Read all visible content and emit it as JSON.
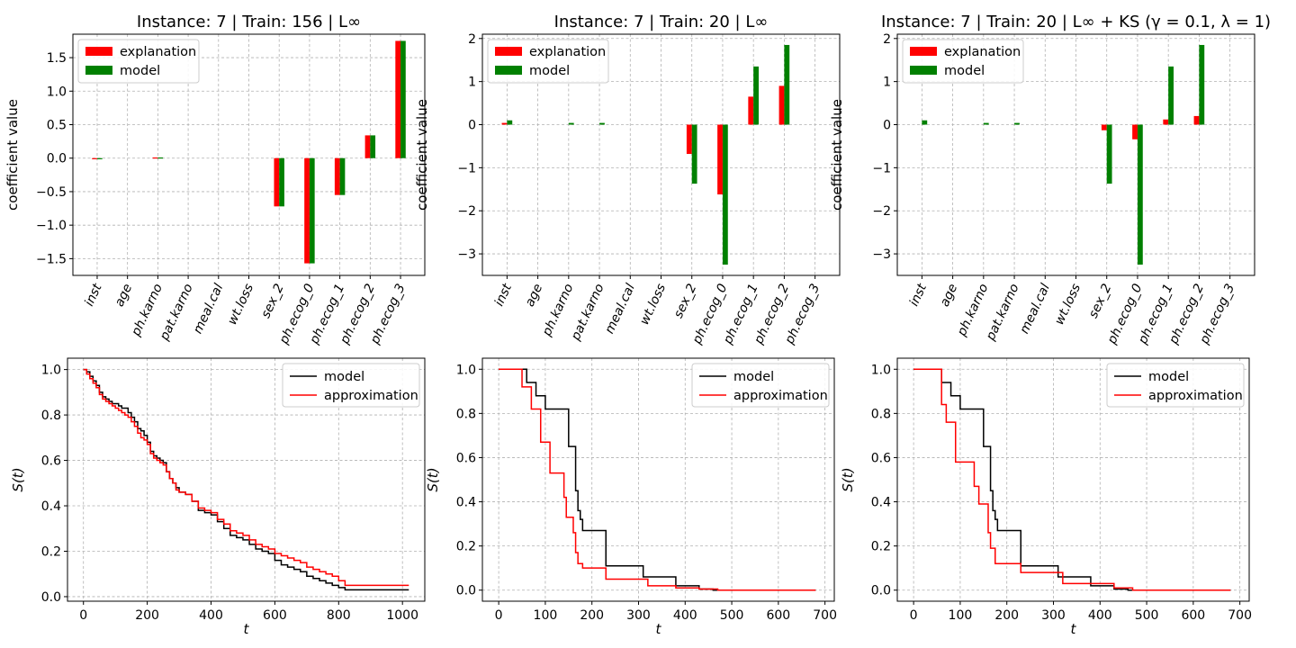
{
  "features": [
    "inst",
    "age",
    "ph.karno",
    "pat.karno",
    "meal.cal",
    "wt.loss",
    "sex_2",
    "ph.ecog_0",
    "ph.ecog_1",
    "ph.ecog_2",
    "ph.ecog_3"
  ],
  "colors": {
    "explanation": "#ff0000",
    "model": "#008000",
    "model_line": "#000000",
    "approx_line": "#ff0000"
  },
  "chart_data": [
    {
      "type": "bar",
      "title": "Instance: 7 | Train: 156 | L∞",
      "ylabel": "coefficient value",
      "ylim": [
        -1.75,
        1.85
      ],
      "yticks": [
        -1.5,
        -1.0,
        -0.5,
        0.0,
        0.5,
        1.0,
        1.5
      ],
      "ytick_labels": [
        "−1.5",
        "−1.0",
        "−0.5",
        "0.0",
        "0.5",
        "1.0",
        "1.5"
      ],
      "legend": [
        "explanation",
        "model"
      ],
      "series": [
        {
          "name": "explanation",
          "values": [
            -0.01,
            0,
            0.01,
            0,
            0,
            0,
            -0.72,
            -1.57,
            -0.55,
            0.34,
            1.75
          ]
        },
        {
          "name": "model",
          "values": [
            -0.01,
            0,
            0.01,
            0,
            0,
            0,
            -0.72,
            -1.57,
            -0.55,
            0.34,
            1.75
          ]
        }
      ]
    },
    {
      "type": "bar",
      "title": "Instance: 7 | Train: 20 | L∞",
      "ylabel": "coefficient value",
      "ylim": [
        -3.5,
        2.1
      ],
      "yticks": [
        -3,
        -2,
        -1,
        0,
        1,
        2
      ],
      "ytick_labels": [
        "−3",
        "−2",
        "−1",
        "0",
        "1",
        "2"
      ],
      "legend": [
        "explanation",
        "model"
      ],
      "series": [
        {
          "name": "explanation",
          "values": [
            0.04,
            0,
            0,
            0,
            0,
            0,
            -0.68,
            -1.62,
            0.65,
            0.9,
            0
          ]
        },
        {
          "name": "model",
          "values": [
            0.1,
            0,
            0.04,
            0.04,
            0,
            0,
            -1.37,
            -3.25,
            1.35,
            1.85,
            0
          ]
        }
      ]
    },
    {
      "type": "bar",
      "title": "Instance: 7 | Train: 20 | L∞ + KS (γ = 0.1, λ = 1)",
      "ylabel": "coefficient value",
      "ylim": [
        -3.5,
        2.1
      ],
      "yticks": [
        -3,
        -2,
        -1,
        0,
        1,
        2
      ],
      "ytick_labels": [
        "−3",
        "−2",
        "−1",
        "0",
        "1",
        "2"
      ],
      "legend": [
        "explanation",
        "model"
      ],
      "series": [
        {
          "name": "explanation",
          "values": [
            0,
            0,
            0,
            0,
            0,
            0,
            -0.13,
            -0.34,
            0.12,
            0.2,
            0
          ]
        },
        {
          "name": "model",
          "values": [
            0.1,
            0,
            0.04,
            0.04,
            0,
            0,
            -1.37,
            -3.25,
            1.35,
            1.85,
            0
          ]
        }
      ]
    },
    {
      "type": "line",
      "step": true,
      "xlabel": "t",
      "ylabel": "S(t)",
      "xlim": [
        -50,
        1070
      ],
      "ylim": [
        -0.02,
        1.05
      ],
      "xticks": [
        0,
        200,
        400,
        600,
        800,
        1000
      ],
      "yticks": [
        0.0,
        0.2,
        0.4,
        0.6,
        0.8,
        1.0
      ],
      "ytick_labels": [
        "0.0",
        "0.2",
        "0.4",
        "0.6",
        "0.8",
        "1.0"
      ],
      "legend": [
        "model",
        "approximation"
      ],
      "series": [
        {
          "name": "model",
          "x": [
            0,
            10,
            20,
            30,
            40,
            50,
            60,
            70,
            80,
            90,
            100,
            110,
            120,
            130,
            140,
            150,
            160,
            170,
            180,
            190,
            200,
            210,
            220,
            230,
            240,
            250,
            260,
            270,
            280,
            290,
            300,
            320,
            340,
            360,
            380,
            400,
            420,
            440,
            460,
            480,
            500,
            520,
            540,
            560,
            580,
            600,
            620,
            640,
            660,
            680,
            700,
            720,
            740,
            760,
            780,
            800,
            820,
            1020
          ],
          "y": [
            1.0,
            0.99,
            0.97,
            0.95,
            0.93,
            0.9,
            0.88,
            0.87,
            0.86,
            0.85,
            0.85,
            0.84,
            0.83,
            0.83,
            0.81,
            0.79,
            0.77,
            0.74,
            0.73,
            0.71,
            0.68,
            0.64,
            0.62,
            0.61,
            0.6,
            0.59,
            0.55,
            0.52,
            0.5,
            0.48,
            0.46,
            0.45,
            0.42,
            0.38,
            0.37,
            0.36,
            0.33,
            0.3,
            0.27,
            0.26,
            0.25,
            0.23,
            0.21,
            0.2,
            0.19,
            0.16,
            0.14,
            0.13,
            0.12,
            0.11,
            0.09,
            0.08,
            0.07,
            0.06,
            0.05,
            0.04,
            0.03,
            0.03
          ]
        },
        {
          "name": "approximation",
          "x": [
            0,
            10,
            20,
            30,
            40,
            50,
            60,
            70,
            80,
            90,
            100,
            110,
            120,
            130,
            140,
            150,
            160,
            170,
            180,
            190,
            200,
            210,
            220,
            230,
            240,
            250,
            260,
            270,
            280,
            290,
            300,
            320,
            340,
            360,
            380,
            400,
            420,
            440,
            460,
            480,
            500,
            520,
            540,
            560,
            580,
            600,
            620,
            640,
            660,
            680,
            700,
            720,
            740,
            760,
            780,
            800,
            820,
            1020
          ],
          "y": [
            1.0,
            0.98,
            0.96,
            0.94,
            0.92,
            0.89,
            0.87,
            0.86,
            0.85,
            0.84,
            0.83,
            0.82,
            0.81,
            0.8,
            0.79,
            0.77,
            0.75,
            0.72,
            0.7,
            0.69,
            0.67,
            0.63,
            0.61,
            0.6,
            0.59,
            0.58,
            0.55,
            0.52,
            0.5,
            0.47,
            0.46,
            0.45,
            0.42,
            0.39,
            0.38,
            0.37,
            0.34,
            0.32,
            0.29,
            0.28,
            0.27,
            0.25,
            0.23,
            0.22,
            0.21,
            0.19,
            0.18,
            0.17,
            0.16,
            0.15,
            0.13,
            0.12,
            0.11,
            0.1,
            0.09,
            0.07,
            0.05,
            0.05
          ]
        }
      ]
    },
    {
      "type": "line",
      "step": true,
      "xlabel": "t",
      "ylabel": "S(t)",
      "xlim": [
        -35,
        720
      ],
      "ylim": [
        -0.05,
        1.05
      ],
      "xticks": [
        0,
        100,
        200,
        300,
        400,
        500,
        600,
        700
      ],
      "yticks": [
        0.0,
        0.2,
        0.4,
        0.6,
        0.8,
        1.0
      ],
      "ytick_labels": [
        "0.0",
        "0.2",
        "0.4",
        "0.6",
        "0.8",
        "1.0"
      ],
      "legend": [
        "model",
        "approximation"
      ],
      "series": [
        {
          "name": "model",
          "x": [
            0,
            60,
            80,
            100,
            130,
            150,
            165,
            170,
            175,
            180,
            200,
            230,
            270,
            310,
            380,
            420,
            430,
            460,
            680
          ],
          "y": [
            1.0,
            0.94,
            0.88,
            0.82,
            0.82,
            0.65,
            0.45,
            0.36,
            0.32,
            0.27,
            0.27,
            0.11,
            0.11,
            0.06,
            0.02,
            0.02,
            0.005,
            0.0,
            0.0
          ]
        },
        {
          "name": "approximation",
          "x": [
            0,
            50,
            70,
            90,
            110,
            130,
            140,
            145,
            160,
            165,
            170,
            180,
            200,
            230,
            270,
            320,
            380,
            430,
            470,
            680
          ],
          "y": [
            1.0,
            0.92,
            0.82,
            0.67,
            0.53,
            0.53,
            0.42,
            0.33,
            0.26,
            0.17,
            0.12,
            0.1,
            0.1,
            0.05,
            0.05,
            0.02,
            0.01,
            0.005,
            0.0,
            0.0
          ]
        }
      ]
    },
    {
      "type": "line",
      "step": true,
      "xlabel": "t",
      "ylabel": "S(t)",
      "xlim": [
        -35,
        720
      ],
      "ylim": [
        -0.05,
        1.05
      ],
      "xticks": [
        0,
        100,
        200,
        300,
        400,
        500,
        600,
        700
      ],
      "yticks": [
        0.0,
        0.2,
        0.4,
        0.6,
        0.8,
        1.0
      ],
      "ytick_labels": [
        "0.0",
        "0.2",
        "0.4",
        "0.6",
        "0.8",
        "1.0"
      ],
      "legend": [
        "model",
        "approximation"
      ],
      "series": [
        {
          "name": "model",
          "x": [
            0,
            60,
            80,
            100,
            130,
            150,
            165,
            170,
            175,
            180,
            200,
            230,
            270,
            310,
            380,
            420,
            430,
            460,
            680
          ],
          "y": [
            1.0,
            0.94,
            0.88,
            0.82,
            0.82,
            0.65,
            0.45,
            0.36,
            0.32,
            0.27,
            0.27,
            0.11,
            0.11,
            0.06,
            0.02,
            0.02,
            0.005,
            0.0,
            0.0
          ]
        },
        {
          "name": "approximation",
          "x": [
            0,
            60,
            70,
            90,
            130,
            140,
            150,
            160,
            165,
            175,
            200,
            230,
            270,
            320,
            380,
            430,
            470,
            680
          ],
          "y": [
            1.0,
            0.84,
            0.76,
            0.58,
            0.47,
            0.39,
            0.39,
            0.26,
            0.19,
            0.12,
            0.12,
            0.08,
            0.08,
            0.03,
            0.03,
            0.01,
            0.0,
            0.0
          ]
        }
      ]
    }
  ]
}
